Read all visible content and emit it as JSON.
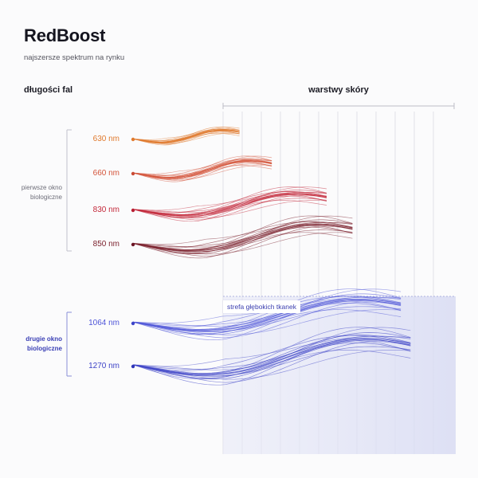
{
  "title": "RedBoost",
  "subtitle": "najszersze spektrum na rynku",
  "headers": {
    "wavelengths": "długości fal",
    "skin_layers": "warstwy skóry"
  },
  "groups": {
    "first_window": "pierwsze okno biologiczne",
    "second_window": "drugie okno biologiczne"
  },
  "deep_tissue_zone": "strefa głębokich tkanek",
  "waves": [
    {
      "label": "630 nm",
      "color": "#e07a2e",
      "dot": "#e07a2e",
      "penetration": 0.33
    },
    {
      "label": "660 nm",
      "color": "#d4543a",
      "dot": "#c94b35",
      "penetration": 0.43
    },
    {
      "label": "830 nm",
      "color": "#c3283a",
      "dot": "#b81e33",
      "penetration": 0.6
    },
    {
      "label": "850 nm",
      "color": "#7a1f2b",
      "dot": "#6b1626",
      "penetration": 0.68
    },
    {
      "label": "1064 nm",
      "color": "#4e55d8",
      "dot": "#3d44c8",
      "penetration": 0.83
    },
    {
      "label": "1270 nm",
      "color": "#3d43c7",
      "dot": "#3036b8",
      "penetration": 0.86
    }
  ]
}
